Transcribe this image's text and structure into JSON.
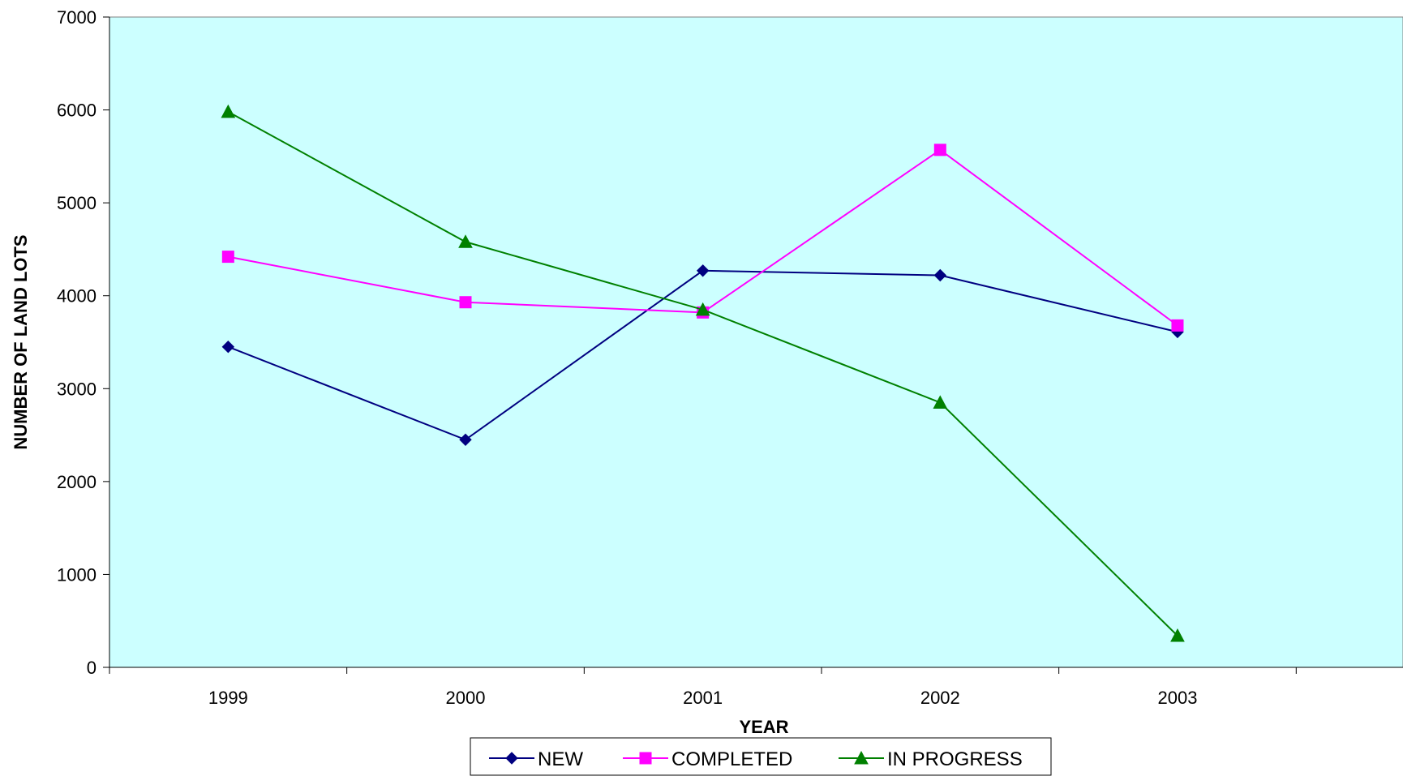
{
  "chart_data": {
    "type": "line",
    "xlabel": "YEAR",
    "ylabel": "NUMBER OF LAND LOTS",
    "categories": [
      "1999",
      "2000",
      "2001",
      "2002",
      "2003"
    ],
    "ylim": [
      0,
      7000
    ],
    "yticks": [
      0,
      1000,
      2000,
      3000,
      4000,
      5000,
      6000,
      7000
    ],
    "grid": false,
    "legend_position": "bottom",
    "plot_background": "#ccffff",
    "series": [
      {
        "name": "NEW",
        "color": "#000080",
        "marker": "diamond",
        "values": [
          3450,
          2450,
          4270,
          4220,
          3610
        ]
      },
      {
        "name": "COMPLETED",
        "color": "#ff00ff",
        "marker": "square",
        "values": [
          4420,
          3930,
          3820,
          5570,
          3680
        ]
      },
      {
        "name": "IN PROGRESS",
        "color": "#008000",
        "marker": "triangle",
        "values": [
          5980,
          4580,
          3850,
          2850,
          340
        ]
      }
    ]
  }
}
